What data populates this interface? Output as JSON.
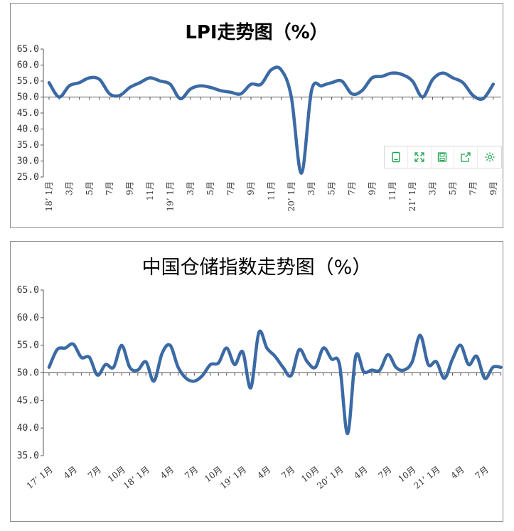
{
  "toolbox": {
    "icons": [
      "tablet-icon",
      "fullscreen-icon",
      "save-icon",
      "share-icon",
      "settings-icon"
    ],
    "color": "#1aa34a"
  },
  "chart_data": [
    {
      "type": "line",
      "title": "LPI走势图（%）",
      "xlabel": "",
      "ylabel": "",
      "ylim": [
        25,
        65
      ],
      "yticks": [
        "65.0",
        "60.0",
        "55.0",
        "50.0",
        "45.0",
        "40.0",
        "35.0",
        "30.0",
        "25.0"
      ],
      "reference_line": 50,
      "line_color": "#3b6aa5",
      "x_tick_labels": [
        "18’ 1月",
        "3月",
        "5月",
        "7月",
        "9月",
        "11月",
        "19’ 1月",
        "3月",
        "5月",
        "7月",
        "9月",
        "11月",
        "20’ 1月",
        "3月",
        "5月",
        "7月",
        "9月",
        "11月",
        "21’ 1月",
        "3月",
        "5月",
        "7月",
        "9月"
      ],
      "x": [
        "18-01",
        "18-02",
        "18-03",
        "18-04",
        "18-05",
        "18-06",
        "18-07",
        "18-08",
        "18-09",
        "18-10",
        "18-11",
        "18-12",
        "19-01",
        "19-02",
        "19-03",
        "19-04",
        "19-05",
        "19-06",
        "19-07",
        "19-08",
        "19-09",
        "19-10",
        "19-11",
        "19-12",
        "20-01",
        "20-02",
        "20-03",
        "20-04",
        "20-05",
        "20-06",
        "20-07",
        "20-08",
        "20-09",
        "20-10",
        "20-11",
        "20-12",
        "21-01",
        "21-02",
        "21-03",
        "21-04",
        "21-05",
        "21-06",
        "21-07",
        "21-08",
        "21-09"
      ],
      "series": [
        {
          "values": [
            54.5,
            50.0,
            53.5,
            54.5,
            56.0,
            55.5,
            51.0,
            50.5,
            53.0,
            54.5,
            56.0,
            55.0,
            54.0,
            49.5,
            52.5,
            53.5,
            53.0,
            52.0,
            51.5,
            51.0,
            54.0,
            54.0,
            58.5,
            58.5,
            50.0,
            26.2,
            52.0,
            53.5,
            54.5,
            55.0,
            51.0,
            52.0,
            56.0,
            56.5,
            57.5,
            57.0,
            55.0,
            50.0,
            55.5,
            57.5,
            56.0,
            54.5,
            50.5,
            49.5,
            54.0
          ]
        }
      ]
    },
    {
      "type": "line",
      "title": "中国仓储指数走势图（%）",
      "xlabel": "",
      "ylabel": "",
      "ylim": [
        35,
        65
      ],
      "yticks": [
        "65.0",
        "60.0",
        "55.0",
        "50.0",
        "45.0",
        "40.0",
        "35.0"
      ],
      "reference_line": 50,
      "line_color": "#3b6aa5",
      "x_tick_labels": [
        "17’ 1月",
        "4月",
        "7月",
        "10月",
        "18’ 1月",
        "4月",
        "7月",
        "10月",
        "19’ 1月",
        "4月",
        "7月",
        "10月",
        "20’ 1月",
        "4月",
        "7月",
        "10月",
        "21’ 1月",
        "4月",
        "7月"
      ],
      "x": [
        "17-01",
        "17-02",
        "17-03",
        "17-04",
        "17-05",
        "17-06",
        "17-07",
        "17-08",
        "17-09",
        "17-10",
        "17-11",
        "17-12",
        "18-01",
        "18-02",
        "18-03",
        "18-04",
        "18-05",
        "18-06",
        "18-07",
        "18-08",
        "18-09",
        "18-10",
        "18-11",
        "18-12",
        "19-01",
        "19-02",
        "19-03",
        "19-04",
        "19-05",
        "19-06",
        "19-07",
        "19-08",
        "19-09",
        "19-10",
        "19-11",
        "19-12",
        "20-01",
        "20-02",
        "20-03",
        "20-04",
        "20-05",
        "20-06",
        "20-07",
        "20-08",
        "20-09",
        "20-10",
        "20-11",
        "20-12",
        "21-01",
        "21-02",
        "21-03",
        "21-04",
        "21-05",
        "21-06",
        "21-07",
        "21-08",
        "21-09"
      ],
      "series": [
        {
          "values": [
            51.0,
            54.2,
            54.5,
            55.2,
            52.8,
            52.8,
            49.6,
            51.5,
            51.0,
            55.0,
            51.0,
            50.5,
            52.0,
            48.5,
            53.5,
            55.0,
            51.0,
            49.0,
            48.5,
            49.5,
            51.5,
            51.8,
            54.5,
            51.5,
            53.8,
            47.3,
            57.3,
            54.5,
            53.0,
            51.0,
            49.5,
            54.2,
            52.0,
            51.0,
            54.5,
            52.5,
            51.5,
            39.0,
            53.0,
            50.2,
            50.5,
            50.5,
            53.3,
            51.0,
            50.5,
            52.0,
            56.8,
            51.5,
            52.0,
            49.0,
            52.5,
            55.0,
            51.5,
            53.0,
            49.0,
            51.0,
            51.0
          ]
        }
      ]
    }
  ]
}
